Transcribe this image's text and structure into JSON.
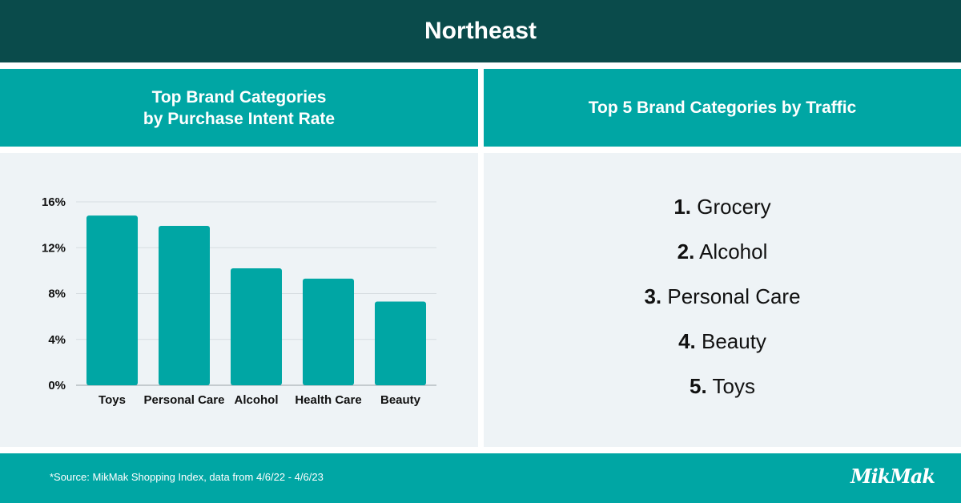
{
  "header": {
    "title": "Northeast"
  },
  "left_panel": {
    "title_line1": "Top Brand Categories",
    "title_line2": "by Purchase Intent Rate"
  },
  "right_panel": {
    "title": "Top 5 Brand Categories by Traffic",
    "items": [
      {
        "rank": "1.",
        "label": "Grocery"
      },
      {
        "rank": "2.",
        "label": "Alcohol"
      },
      {
        "rank": "3.",
        "label": "Personal Care"
      },
      {
        "rank": "4.",
        "label": "Beauty"
      },
      {
        "rank": "5.",
        "label": "Toys"
      }
    ]
  },
  "footer": {
    "source": "*Source: MikMak Shopping Index, data from 4/6/22 - 4/6/23",
    "logo": "MikMak"
  },
  "colors": {
    "header_bg": "#0a4b4b",
    "accent": "#00a6a4",
    "panel_bg": "#eef3f6",
    "bar": "#00a6a4"
  },
  "chart_data": {
    "type": "bar",
    "categories": [
      "Toys",
      "Personal Care",
      "Alcohol",
      "Health Care",
      "Beauty"
    ],
    "values": [
      14.8,
      13.9,
      10.2,
      9.3,
      7.3
    ],
    "yticks": [
      "0%",
      "4%",
      "8%",
      "12%",
      "16%"
    ],
    "ytick_values": [
      0,
      4,
      8,
      12,
      16
    ],
    "ylim": [
      0,
      16
    ],
    "unit": "%",
    "grid": true
  }
}
